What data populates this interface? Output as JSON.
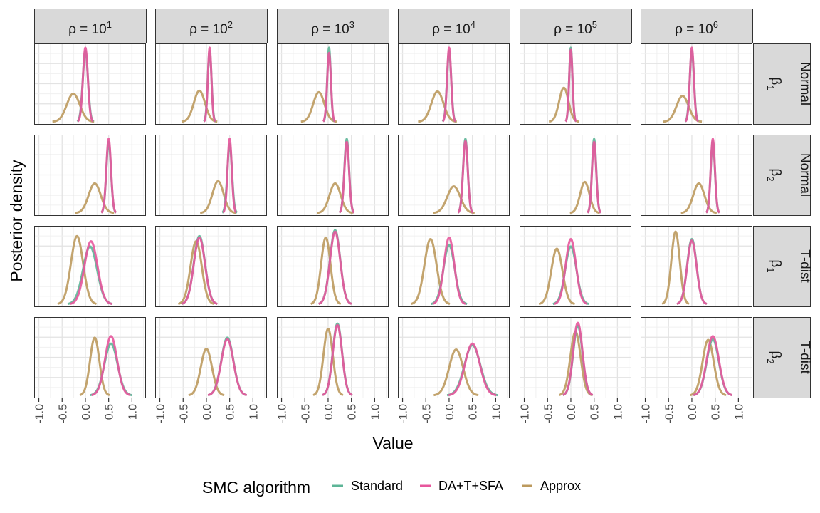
{
  "chart_data": {
    "type": "line",
    "kind": "faceted density plot",
    "xlabel": "Value",
    "ylabel": "Posterior density",
    "xlim": [
      -1.1,
      1.3
    ],
    "x_ticks": [
      -1.0,
      -0.5,
      0.0,
      0.5,
      1.0
    ],
    "x_tick_labels": [
      "-1.0",
      "-0.5",
      "0.0",
      "0.5",
      "1.0"
    ],
    "grid": true,
    "legend": {
      "title": "SMC algorithm",
      "placement": "bottom",
      "entries": [
        {
          "name": "Standard",
          "color": "#5DB597"
        },
        {
          "name": "DA+T+SFA",
          "color": "#E7569C"
        },
        {
          "name": "Approx",
          "color": "#BC9A5E"
        }
      ]
    },
    "facet_columns": [
      {
        "prefix": "ρ = 10",
        "exponent": "1"
      },
      {
        "prefix": "ρ = 10",
        "exponent": "2"
      },
      {
        "prefix": "ρ = 10",
        "exponent": "3"
      },
      {
        "prefix": "ρ = 10",
        "exponent": "4"
      },
      {
        "prefix": "ρ = 10",
        "exponent": "5"
      },
      {
        "prefix": "ρ = 10",
        "exponent": "6"
      }
    ],
    "facet_rows": [
      {
        "param": "β",
        "sub": "1",
        "dist": "Normal"
      },
      {
        "param": "β",
        "sub": "2",
        "dist": "Normal"
      },
      {
        "param": "β",
        "sub": "1",
        "dist": "T-dist"
      },
      {
        "param": "β",
        "sub": "2",
        "dist": "T-dist"
      }
    ],
    "series_encoding": "each curve is a density approximated by a normal with mean (data units) and sd (data units); height is the peak density relative to the tallest curve of the facet",
    "panels": [
      [
        {
          "Standard": {
            "mean": 0.0,
            "sd": 0.055,
            "height": 0.96
          },
          "DA+T+SFA": {
            "mean": 0.0,
            "sd": 0.052,
            "height": 1.0
          },
          "Approx": {
            "mean": -0.26,
            "sd": 0.14,
            "height": 0.38
          }
        },
        {
          "Standard": {
            "mean": 0.07,
            "sd": 0.04,
            "height": 0.96
          },
          "DA+T+SFA": {
            "mean": 0.07,
            "sd": 0.038,
            "height": 1.0
          },
          "Approx": {
            "mean": -0.15,
            "sd": 0.12,
            "height": 0.42
          }
        },
        {
          "Standard": {
            "mean": 0.02,
            "sd": 0.038,
            "height": 1.0
          },
          "DA+T+SFA": {
            "mean": 0.02,
            "sd": 0.04,
            "height": 0.93
          },
          "Approx": {
            "mean": -0.2,
            "sd": 0.12,
            "height": 0.4
          }
        },
        {
          "Standard": {
            "mean": 0.0,
            "sd": 0.045,
            "height": 0.96
          },
          "DA+T+SFA": {
            "mean": 0.0,
            "sd": 0.043,
            "height": 1.0
          },
          "Approx": {
            "mean": -0.25,
            "sd": 0.13,
            "height": 0.41
          }
        },
        {
          "Standard": {
            "mean": 0.0,
            "sd": 0.035,
            "height": 1.0
          },
          "DA+T+SFA": {
            "mean": 0.0,
            "sd": 0.036,
            "height": 0.97
          },
          "Approx": {
            "mean": -0.15,
            "sd": 0.1,
            "height": 0.46
          }
        },
        {
          "Standard": {
            "mean": 0.0,
            "sd": 0.045,
            "height": 0.96
          },
          "DA+T+SFA": {
            "mean": 0.0,
            "sd": 0.043,
            "height": 1.0
          },
          "Approx": {
            "mean": -0.2,
            "sd": 0.13,
            "height": 0.35
          }
        }
      ],
      [
        {
          "Standard": {
            "mean": 0.5,
            "sd": 0.05,
            "height": 0.96
          },
          "DA+T+SFA": {
            "mean": 0.5,
            "sd": 0.05,
            "height": 1.0
          },
          "Approx": {
            "mean": 0.2,
            "sd": 0.13,
            "height": 0.4
          }
        },
        {
          "Standard": {
            "mean": 0.5,
            "sd": 0.05,
            "height": 0.93
          },
          "DA+T+SFA": {
            "mean": 0.5,
            "sd": 0.045,
            "height": 1.0
          },
          "Approx": {
            "mean": 0.25,
            "sd": 0.12,
            "height": 0.43
          }
        },
        {
          "Standard": {
            "mean": 0.4,
            "sd": 0.05,
            "height": 1.0
          },
          "DA+T+SFA": {
            "mean": 0.4,
            "sd": 0.05,
            "height": 0.96
          },
          "Approx": {
            "mean": 0.15,
            "sd": 0.12,
            "height": 0.4
          }
        },
        {
          "Standard": {
            "mean": 0.35,
            "sd": 0.05,
            "height": 1.0
          },
          "DA+T+SFA": {
            "mean": 0.35,
            "sd": 0.05,
            "height": 0.97
          },
          "Approx": {
            "mean": 0.1,
            "sd": 0.14,
            "height": 0.36
          }
        },
        {
          "Standard": {
            "mean": 0.5,
            "sd": 0.045,
            "height": 1.0
          },
          "DA+T+SFA": {
            "mean": 0.5,
            "sd": 0.045,
            "height": 0.96
          },
          "Approx": {
            "mean": 0.3,
            "sd": 0.1,
            "height": 0.42
          }
        },
        {
          "Standard": {
            "mean": 0.45,
            "sd": 0.045,
            "height": 0.97
          },
          "DA+T+SFA": {
            "mean": 0.45,
            "sd": 0.045,
            "height": 1.0
          },
          "Approx": {
            "mean": 0.15,
            "sd": 0.12,
            "height": 0.4
          }
        }
      ],
      [
        {
          "Standard": {
            "mean": 0.1,
            "sd": 0.15,
            "height": 0.78
          },
          "DA+T+SFA": {
            "mean": 0.12,
            "sd": 0.14,
            "height": 0.85
          },
          "Approx": {
            "mean": -0.18,
            "sd": 0.13,
            "height": 0.92
          }
        },
        {
          "Standard": {
            "mean": -0.15,
            "sd": 0.12,
            "height": 0.92
          },
          "DA+T+SFA": {
            "mean": -0.15,
            "sd": 0.12,
            "height": 0.9
          },
          "Approx": {
            "mean": -0.22,
            "sd": 0.12,
            "height": 0.85
          }
        },
        {
          "Standard": {
            "mean": 0.15,
            "sd": 0.11,
            "height": 1.0
          },
          "DA+T+SFA": {
            "mean": 0.15,
            "sd": 0.11,
            "height": 0.98
          },
          "Approx": {
            "mean": -0.05,
            "sd": 0.1,
            "height": 0.9
          }
        },
        {
          "Standard": {
            "mean": 0.0,
            "sd": 0.12,
            "height": 0.8
          },
          "DA+T+SFA": {
            "mean": 0.0,
            "sd": 0.11,
            "height": 0.9
          },
          "Approx": {
            "mean": -0.4,
            "sd": 0.13,
            "height": 0.88
          }
        },
        {
          "Standard": {
            "mean": 0.0,
            "sd": 0.12,
            "height": 0.78
          },
          "DA+T+SFA": {
            "mean": 0.0,
            "sd": 0.11,
            "height": 0.88
          },
          "Approx": {
            "mean": -0.3,
            "sd": 0.12,
            "height": 0.75
          }
        },
        {
          "Standard": {
            "mean": 0.0,
            "sd": 0.1,
            "height": 0.88
          },
          "DA+T+SFA": {
            "mean": 0.0,
            "sd": 0.1,
            "height": 0.86
          },
          "Approx": {
            "mean": -0.35,
            "sd": 0.09,
            "height": 0.98
          }
        }
      ],
      [
        {
          "Standard": {
            "mean": 0.55,
            "sd": 0.14,
            "height": 0.7
          },
          "DA+T+SFA": {
            "mean": 0.55,
            "sd": 0.13,
            "height": 0.8
          },
          "Approx": {
            "mean": 0.2,
            "sd": 0.1,
            "height": 0.78
          }
        },
        {
          "Standard": {
            "mean": 0.45,
            "sd": 0.13,
            "height": 0.78
          },
          "DA+T+SFA": {
            "mean": 0.45,
            "sd": 0.13,
            "height": 0.76
          },
          "Approx": {
            "mean": 0.0,
            "sd": 0.12,
            "height": 0.63
          }
        },
        {
          "Standard": {
            "mean": 0.2,
            "sd": 0.1,
            "height": 0.97
          },
          "DA+T+SFA": {
            "mean": 0.2,
            "sd": 0.1,
            "height": 0.95
          },
          "Approx": {
            "mean": 0.0,
            "sd": 0.1,
            "height": 0.9
          }
        },
        {
          "Standard": {
            "mean": 0.5,
            "sd": 0.17,
            "height": 0.68
          },
          "DA+T+SFA": {
            "mean": 0.5,
            "sd": 0.16,
            "height": 0.7
          },
          "Approx": {
            "mean": 0.15,
            "sd": 0.15,
            "height": 0.62
          }
        },
        {
          "Standard": {
            "mean": 0.15,
            "sd": 0.1,
            "height": 0.94
          },
          "DA+T+SFA": {
            "mean": 0.15,
            "sd": 0.1,
            "height": 0.98
          },
          "Approx": {
            "mean": 0.1,
            "sd": 0.11,
            "height": 0.86
          }
        },
        {
          "Standard": {
            "mean": 0.45,
            "sd": 0.13,
            "height": 0.76
          },
          "DA+T+SFA": {
            "mean": 0.45,
            "sd": 0.13,
            "height": 0.8
          },
          "Approx": {
            "mean": 0.35,
            "sd": 0.12,
            "height": 0.75
          }
        }
      ]
    ]
  }
}
